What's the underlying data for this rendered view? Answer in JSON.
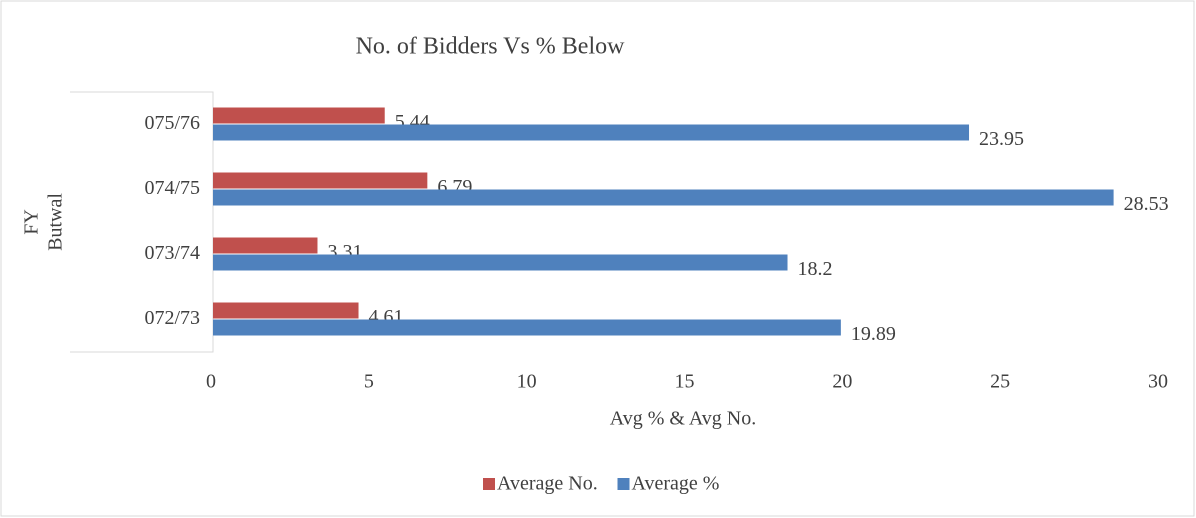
{
  "chart_data": {
    "type": "hbar",
    "title": "No. of Bidders Vs % Below",
    "x_label": "Avg % & Avg No.",
    "y_label": "FY",
    "group_label": "Butwal",
    "categories": [
      "072/73",
      "073/74",
      "074/75",
      "075/76"
    ],
    "series": [
      {
        "name": "Average No.",
        "color": "#c0504d",
        "values": [
          4.61,
          3.31,
          6.79,
          5.44
        ]
      },
      {
        "name": "Average %",
        "color": "#4f81bd",
        "values": [
          19.89,
          18.2,
          28.53,
          23.95
        ]
      }
    ],
    "xlim": [
      0,
      30
    ],
    "xticks": [
      0,
      5,
      10,
      15,
      20,
      25,
      30
    ],
    "legend": "bottom"
  }
}
